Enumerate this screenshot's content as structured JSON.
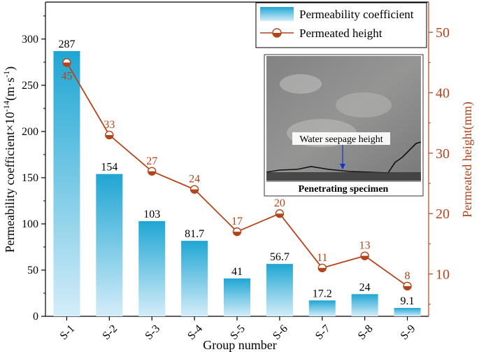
{
  "chart_data": {
    "type": "bar",
    "categories": [
      "S-1",
      "S-2",
      "S-3",
      "S-4",
      "S-5",
      "S-6",
      "S-7",
      "S-8",
      "S-9"
    ],
    "xlabel": "Group number",
    "ylabel_left_main": "Permeability coefficient×10",
    "ylabel_left_sup": "-14",
    "ylabel_left_unit": "(m·s",
    "ylabel_left_unit_sup": "-1",
    "ylabel_left_end": ")",
    "ylabel_right": "Permeated height(mm)",
    "ylim_left": [
      0,
      340
    ],
    "yticks_left": [
      0,
      50,
      100,
      150,
      200,
      250,
      300
    ],
    "ylim_right": [
      3,
      55
    ],
    "yticks_right": [
      10,
      20,
      30,
      40,
      50
    ],
    "series": [
      {
        "name": "Permeability coefficient",
        "type": "bar",
        "axis": "left",
        "values": [
          287,
          154,
          103,
          81.7,
          41,
          56.7,
          17.2,
          24,
          9.1
        ],
        "labels": [
          "287",
          "154",
          "103",
          "81.7",
          "41",
          "56.7",
          "17.2",
          "24",
          "9.1"
        ],
        "color": "#1fa6d3"
      },
      {
        "name": "Permeated height",
        "type": "line",
        "axis": "right",
        "values": [
          45,
          33,
          27,
          24,
          17,
          20,
          11,
          13,
          8
        ],
        "labels": [
          "45",
          "33",
          "27",
          "24",
          "17",
          "20",
          "11",
          "13",
          "8"
        ],
        "color": "#b3441a"
      }
    ],
    "legend_position": "top-right",
    "inset": {
      "annotation": "Water seepage height",
      "caption": "Penetrating specimen"
    }
  }
}
